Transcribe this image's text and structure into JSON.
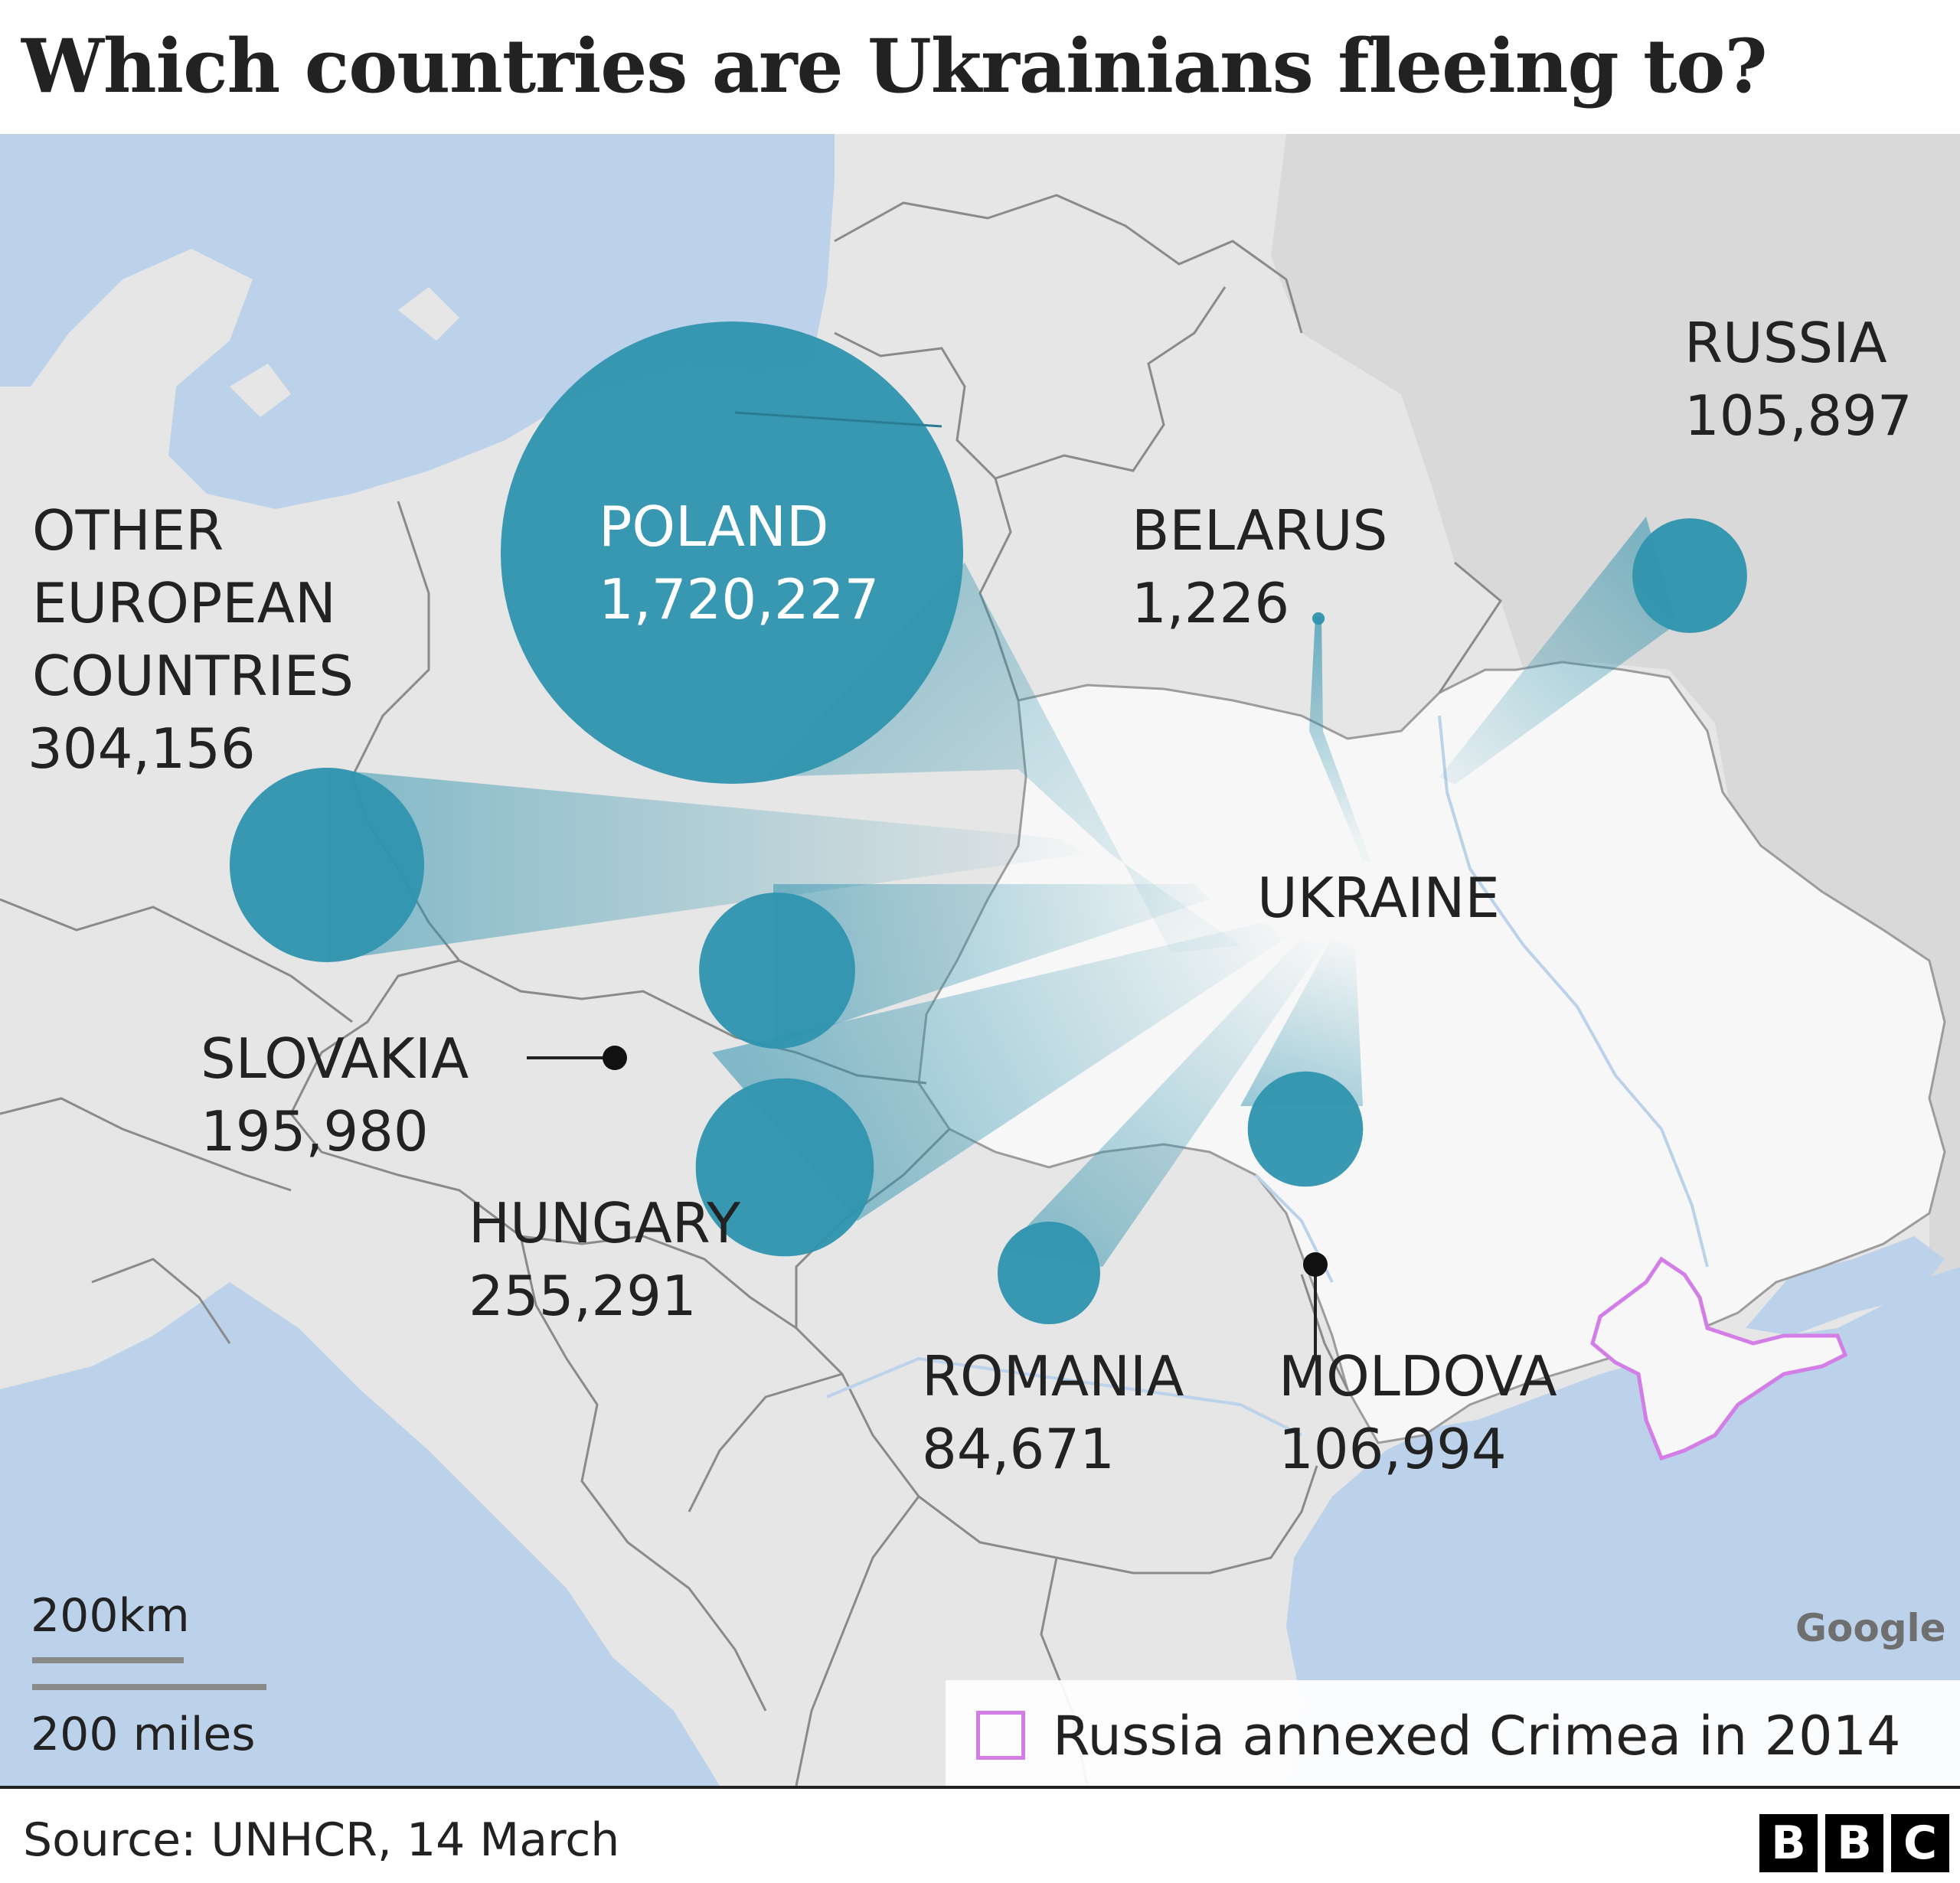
{
  "title": "Which countries are Ukrainians fleeing to?",
  "countries": [
    {
      "name": "POLAND",
      "count": "1,720,227"
    },
    {
      "name": "OTHER EUROPEAN COUNTRIES",
      "name_lines": [
        "OTHER",
        "EUROPEAN",
        "COUNTRIES"
      ],
      "count": "304,156"
    },
    {
      "name": "HUNGARY",
      "count": "255,291"
    },
    {
      "name": "SLOVAKIA",
      "count": "195,980"
    },
    {
      "name": "MOLDOVA",
      "count": "106,994"
    },
    {
      "name": "RUSSIA",
      "count": "105,897"
    },
    {
      "name": "ROMANIA",
      "count": "84,671"
    },
    {
      "name": "BELARUS",
      "count": "1,226"
    }
  ],
  "origin_label": "UKRAINE",
  "scale": {
    "km": "200km",
    "miles": "200 miles"
  },
  "attribution": "Google",
  "legend": {
    "text": "Russia annexed Crimea in 2014",
    "color": "#d27ee6"
  },
  "source": "Source: UNHCR, 14 March",
  "logo": [
    "B",
    "B",
    "C"
  ],
  "colors": {
    "bubble": "#2f93ae",
    "water": "#bcd2ea",
    "land": "#e6e6e6",
    "ukraine": "#f7f7f7",
    "russia": "#d9d9d9"
  }
}
